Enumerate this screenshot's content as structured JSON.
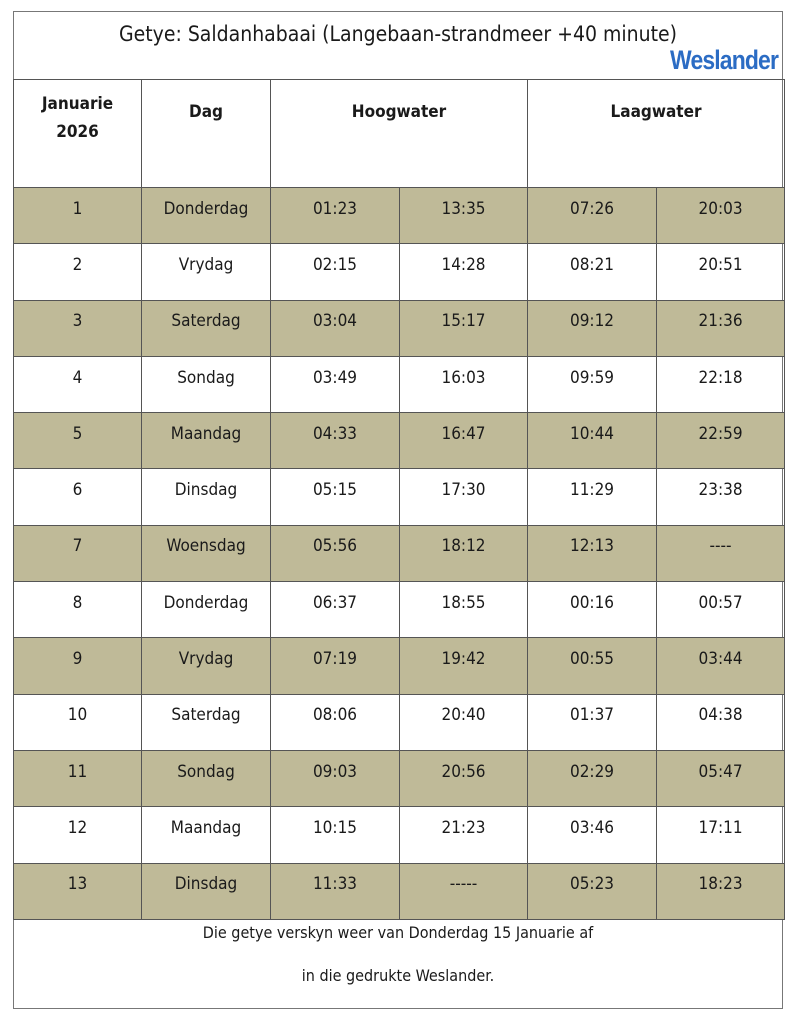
{
  "title": "Getye: Saldanhabaai (Langebaan-strandmeer +40 minute)",
  "logo": "Weslander",
  "headers": {
    "date": "Januarie 2026",
    "day": "Dag",
    "high": "Hoogwater",
    "low": "Laagwater"
  },
  "rows": [
    {
      "date": "1",
      "day": "Donderdag",
      "high1": "01:23",
      "high2": "13:35",
      "low1": "07:26",
      "low2": "20:03"
    },
    {
      "date": "2",
      "day": "Vrydag",
      "high1": "02:15",
      "high2": "14:28",
      "low1": "08:21",
      "low2": "20:51"
    },
    {
      "date": "3",
      "day": "Saterdag",
      "high1": "03:04",
      "high2": "15:17",
      "low1": "09:12",
      "low2": "21:36"
    },
    {
      "date": "4",
      "day": "Sondag",
      "high1": "03:49",
      "high2": "16:03",
      "low1": "09:59",
      "low2": "22:18"
    },
    {
      "date": "5",
      "day": "Maandag",
      "high1": "04:33",
      "high2": "16:47",
      "low1": "10:44",
      "low2": "22:59"
    },
    {
      "date": "6",
      "day": "Dinsdag",
      "high1": "05:15",
      "high2": "17:30",
      "low1": "11:29",
      "low2": "23:38"
    },
    {
      "date": "7",
      "day": "Woensdag",
      "high1": "05:56",
      "high2": "18:12",
      "low1": "12:13",
      "low2": "----"
    },
    {
      "date": "8",
      "day": "Donderdag",
      "high1": "06:37",
      "high2": "18:55",
      "low1": "00:16",
      "low2": "00:57"
    },
    {
      "date": "9",
      "day": "Vrydag",
      "high1": "07:19",
      "high2": "19:42",
      "low1": "00:55",
      "low2": "03:44"
    },
    {
      "date": "10",
      "day": "Saterdag",
      "high1": "08:06",
      "high2": "20:40",
      "low1": "01:37",
      "low2": "04:38"
    },
    {
      "date": "11",
      "day": "Sondag",
      "high1": "09:03",
      "high2": "20:56",
      "low1": "02:29",
      "low2": "05:47"
    },
    {
      "date": "12",
      "day": "Maandag",
      "high1": "10:15",
      "high2": "21:23",
      "low1": "03:46",
      "low2": "17:11"
    },
    {
      "date": "13",
      "day": "Dinsdag",
      "high1": "11:33",
      "high2": "-----",
      "low1": "05:23",
      "low2": "18:23"
    }
  ],
  "footer": {
    "line1": "Die getye verskyn weer van Donderdag 15 Januarie af",
    "line2": "in die gedrukte Weslander."
  },
  "colors": {
    "shade": "#bfba98",
    "logo": "#2b6cc4"
  }
}
